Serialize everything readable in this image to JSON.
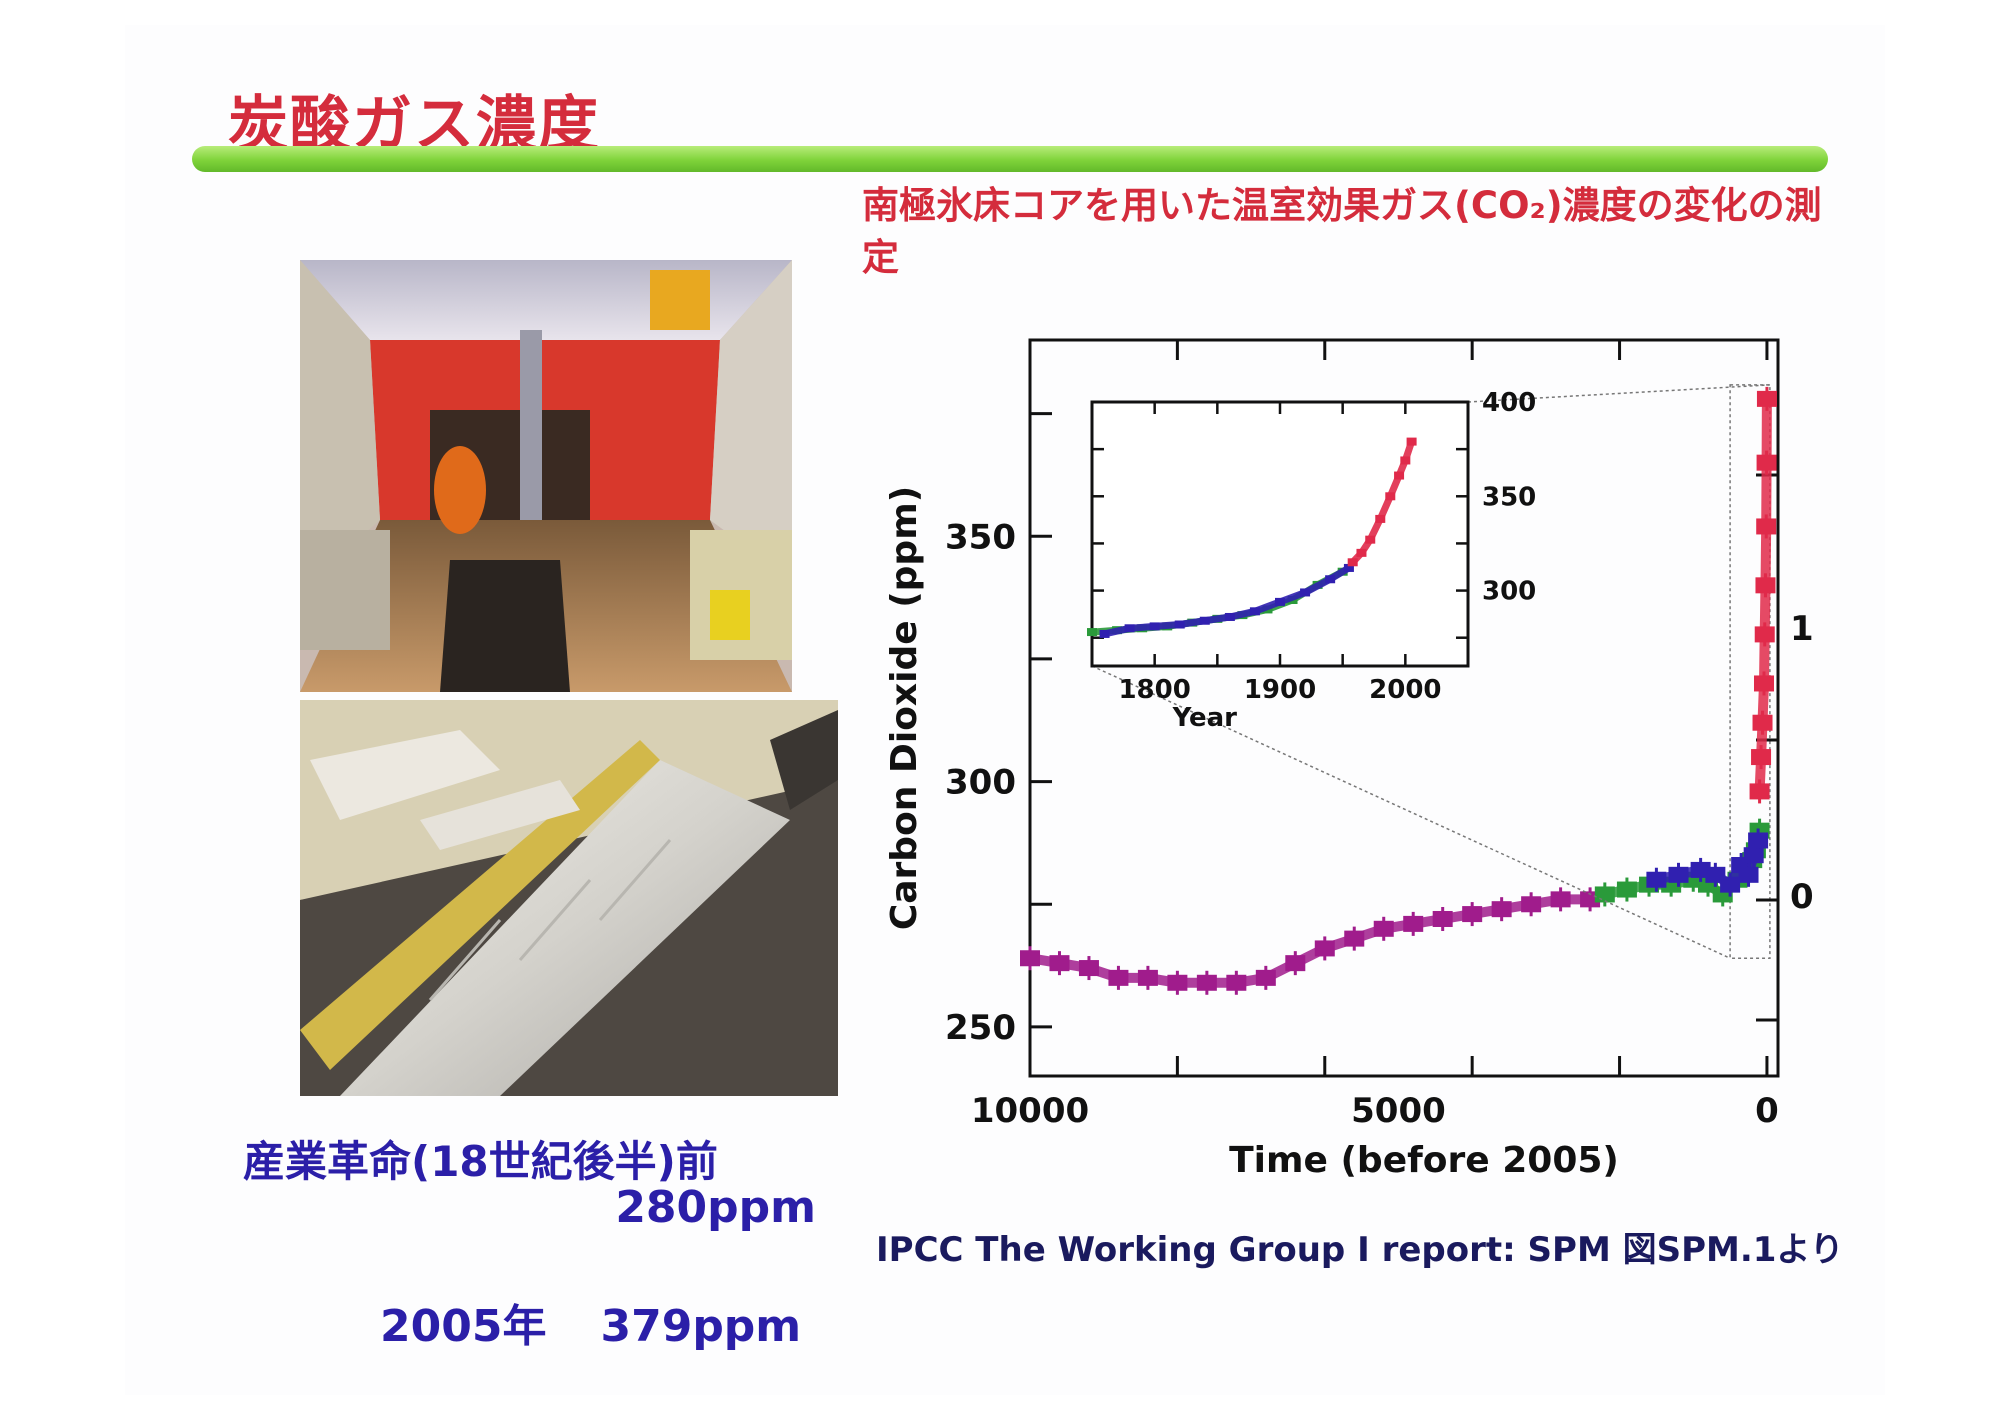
{
  "slide": {
    "title": "炭酸ガス濃度",
    "subtitle": "南極氷床コアを用いた温室効果ガス(CO₂)濃度の変化の測定",
    "caption_preindustrial": "産業革命(18世紀後半)前",
    "caption_preindustrial_value": "280ppm",
    "caption_2005_year": "2005年",
    "caption_2005_value": "379ppm",
    "source": "IPCC  The Working Group I report: SPM  図SPM.1より"
  },
  "chart_data": [
    {
      "type": "scatter",
      "title": "",
      "xlabel": "Time (before 2005)",
      "ylabel": "Carbon Dioxide (ppm)",
      "xlim": [
        10000,
        -150
      ],
      "ylim": [
        240,
        390
      ],
      "x_ticks": [
        10000,
        5000,
        0
      ],
      "y_ticks": [
        250,
        300,
        350
      ],
      "right_axis_ticks": [
        "1",
        "0"
      ],
      "series": [
        {
          "color": "#a01c8c",
          "x": [
            10000,
            9600,
            9200,
            8800,
            8400,
            8000,
            7600,
            7200,
            6800,
            6400,
            6000,
            5600,
            5200,
            4800,
            4400,
            4000,
            3600,
            3200,
            2800,
            2400
          ],
          "y": [
            264,
            263,
            262,
            260,
            260,
            259,
            259,
            259,
            260,
            263,
            266,
            268,
            270,
            271,
            272,
            273,
            274,
            275,
            276,
            276
          ]
        },
        {
          "color": "#2a9a3a",
          "x": [
            2200,
            1900,
            1600,
            1300,
            1000,
            800,
            600,
            400,
            300,
            200,
            150,
            100
          ],
          "y": [
            277,
            278,
            279,
            279,
            280,
            279,
            277,
            280,
            282,
            284,
            286,
            290
          ]
        },
        {
          "color": "#3020b0",
          "x": [
            1500,
            1200,
            900,
            700,
            500,
            350,
            250,
            180,
            120
          ],
          "y": [
            280,
            281,
            282,
            281,
            279,
            283,
            281,
            285,
            288
          ]
        },
        {
          "color": "#e02a4a",
          "x": [
            100,
            80,
            60,
            40,
            30,
            20,
            10,
            5,
            0
          ],
          "y": [
            298,
            305,
            312,
            320,
            330,
            340,
            352,
            365,
            378
          ]
        }
      ]
    },
    {
      "type": "scatter",
      "title": "",
      "xlabel": "Year",
      "ylabel": "",
      "xlim": [
        1750,
        2050
      ],
      "ylim": [
        260,
        400
      ],
      "x_ticks": [
        1800,
        1900,
        2000
      ],
      "y_ticks": [
        300,
        350,
        400
      ],
      "series": [
        {
          "color": "#2a9a3a",
          "x": [
            1750,
            1770,
            1790,
            1810,
            1830,
            1850,
            1870,
            1890,
            1910,
            1930,
            1950
          ],
          "y": [
            278,
            279,
            280,
            281,
            283,
            285,
            287,
            290,
            295,
            303,
            310
          ]
        },
        {
          "color": "#3020b0",
          "x": [
            1760,
            1780,
            1800,
            1820,
            1840,
            1860,
            1880,
            1900,
            1920,
            1940,
            1955
          ],
          "y": [
            277,
            280,
            281,
            282,
            284,
            286,
            289,
            294,
            299,
            306,
            312
          ]
        },
        {
          "color": "#e02a4a",
          "x": [
            1958,
            1965,
            1972,
            1980,
            1988,
            1995,
            2000,
            2005
          ],
          "y": [
            315,
            320,
            327,
            338,
            350,
            361,
            369,
            379
          ]
        }
      ]
    }
  ]
}
